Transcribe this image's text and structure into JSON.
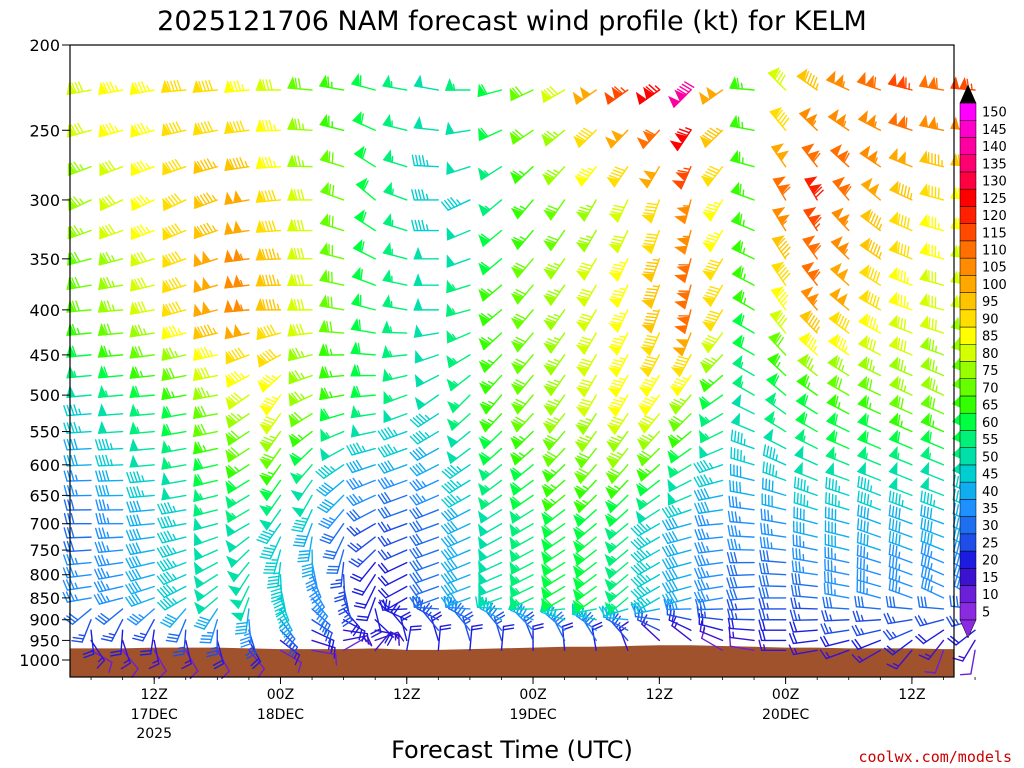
{
  "chart_data": {
    "type": "wind_barb_profile",
    "title": "2025121706 NAM forecast wind profile (kt) for KELM",
    "xlabel": "Forecast Time (UTC)",
    "units": "kt",
    "forecast_hours": [
      0,
      3,
      6,
      9,
      12,
      15,
      18,
      21,
      24,
      27,
      30,
      33,
      36,
      39,
      42,
      45,
      48,
      51,
      54,
      57,
      60,
      63,
      66,
      69,
      72,
      75,
      78,
      81,
      84
    ],
    "x_range_hours": [
      -2,
      82
    ],
    "levels": [
      975,
      950,
      925,
      900,
      875,
      850,
      825,
      800,
      775,
      750,
      725,
      700,
      675,
      650,
      625,
      600,
      575,
      550,
      525,
      500,
      475,
      450,
      425,
      400,
      375,
      350,
      325,
      300,
      275,
      250,
      225
    ],
    "y_range_hpa": [
      1040,
      200
    ],
    "y_ticks": [
      "200",
      "250",
      "300",
      "350",
      "400",
      "450",
      "500",
      "550",
      "600",
      "650",
      "700",
      "750",
      "800",
      "850",
      "900",
      "950",
      "1000"
    ],
    "y_tick_values": [
      200,
      250,
      300,
      350,
      400,
      450,
      500,
      550,
      600,
      650,
      700,
      750,
      800,
      850,
      900,
      950,
      1000
    ],
    "x_ticks": [
      {
        "hour": 6,
        "label": "12Z",
        "date": "17DEC",
        "year": "2025"
      },
      {
        "hour": 18,
        "label": "00Z",
        "date": "18DEC",
        "year": ""
      },
      {
        "hour": 30,
        "label": "12Z",
        "date": "",
        "year": ""
      },
      {
        "hour": 42,
        "label": "00Z",
        "date": "19DEC",
        "year": ""
      },
      {
        "hour": 54,
        "label": "12Z",
        "date": "",
        "year": ""
      },
      {
        "hour": 66,
        "label": "00Z",
        "date": "20DEC",
        "year": ""
      },
      {
        "hour": 78,
        "label": "12Z",
        "date": "",
        "year": ""
      }
    ],
    "terrain_pressure_hpa": [
      970,
      970,
      968,
      968,
      968,
      970,
      972,
      972,
      972,
      970,
      974,
      974,
      972,
      970,
      968,
      966,
      966,
      964,
      962,
      962,
      964,
      966,
      968,
      968,
      970,
      970,
      970,
      972,
      972
    ],
    "terrain_color": "#a0522d",
    "speed_anchors": [
      {
        "level": 975,
        "speeds": [
          8,
          8,
          8,
          10,
          12,
          12,
          10,
          8,
          10,
          15,
          18,
          20,
          20,
          20,
          20,
          20,
          20,
          15,
          10,
          8,
          10,
          12,
          15,
          15,
          15,
          15,
          15,
          12,
          12
        ]
      },
      {
        "level": 850,
        "speeds": [
          35,
          35,
          40,
          45,
          50,
          50,
          45,
          35,
          25,
          20,
          20,
          30,
          40,
          50,
          55,
          60,
          60,
          55,
          45,
          40,
          35,
          30,
          30,
          30,
          35,
          35,
          35,
          35,
          35
        ]
      },
      {
        "level": 700,
        "speeds": [
          30,
          35,
          40,
          45,
          50,
          50,
          45,
          40,
          30,
          25,
          25,
          30,
          40,
          50,
          55,
          60,
          60,
          55,
          45,
          40,
          35,
          35,
          35,
          40,
          40,
          40,
          40,
          40,
          40
        ]
      },
      {
        "level": 500,
        "speeds": [
          50,
          55,
          60,
          65,
          75,
          80,
          85,
          75,
          65,
          60,
          55,
          50,
          55,
          65,
          70,
          75,
          80,
          85,
          85,
          75,
          60,
          55,
          60,
          65,
          70,
          70,
          75,
          75,
          70
        ]
      },
      {
        "level": 400,
        "speeds": [
          70,
          75,
          80,
          90,
          100,
          105,
          95,
          80,
          70,
          60,
          55,
          50,
          55,
          65,
          70,
          75,
          80,
          85,
          95,
          110,
          90,
          65,
          85,
          105,
          100,
          90,
          85,
          80,
          80
        ]
      },
      {
        "level": 300,
        "speeds": [
          75,
          80,
          85,
          90,
          95,
          100,
          90,
          80,
          70,
          60,
          55,
          45,
          45,
          55,
          65,
          70,
          75,
          80,
          90,
          105,
          85,
          65,
          110,
          120,
          110,
          100,
          95,
          90,
          85
        ]
      },
      {
        "level": 225,
        "speeds": [
          80,
          85,
          85,
          90,
          90,
          85,
          80,
          70,
          65,
          60,
          55,
          50,
          55,
          60,
          70,
          80,
          100,
          115,
          125,
          140,
          100,
          65,
          80,
          95,
          105,
          110,
          115,
          110,
          115
        ]
      }
    ],
    "direction_anchors": [
      {
        "level": 975,
        "dirs": [
          120,
          140,
          150,
          150,
          150,
          140,
          120,
          100,
          60,
          40,
          10,
          5,
          5,
          5,
          0,
          355,
          350,
          340,
          330,
          320,
          300,
          280,
          270,
          260,
          250,
          240,
          220,
          200,
          190
        ]
      },
      {
        "level": 850,
        "dirs": [
          260,
          255,
          250,
          240,
          230,
          200,
          160,
          140,
          160,
          200,
          240,
          250,
          250,
          250,
          245,
          240,
          235,
          230,
          240,
          255,
          260,
          265,
          270,
          275,
          280,
          285,
          290,
          295,
          300
        ]
      },
      {
        "level": 700,
        "dirs": [
          270,
          270,
          265,
          260,
          255,
          240,
          215,
          200,
          215,
          240,
          250,
          250,
          245,
          240,
          240,
          235,
          230,
          230,
          240,
          255,
          265,
          275,
          280,
          285,
          285,
          290,
          290,
          290,
          295
        ]
      },
      {
        "level": 500,
        "dirs": [
          265,
          265,
          265,
          260,
          260,
          235,
          215,
          245,
          260,
          265,
          250,
          235,
          225,
          220,
          220,
          215,
          210,
          210,
          215,
          220,
          235,
          300,
          310,
          305,
          300,
          295,
          295,
          295,
          295
        ]
      },
      {
        "level": 400,
        "dirs": [
          265,
          265,
          260,
          255,
          255,
          265,
          270,
          270,
          280,
          285,
          280,
          270,
          255,
          230,
          220,
          215,
          210,
          205,
          200,
          195,
          210,
          300,
          325,
          320,
          310,
          300,
          290,
          285,
          280
        ]
      },
      {
        "level": 300,
        "dirs": [
          245,
          245,
          245,
          245,
          250,
          260,
          265,
          270,
          290,
          310,
          290,
          270,
          245,
          230,
          220,
          215,
          210,
          205,
          200,
          195,
          210,
          290,
          330,
          330,
          320,
          310,
          295,
          285,
          275
        ]
      },
      {
        "level": 225,
        "dirs": [
          260,
          260,
          260,
          265,
          265,
          265,
          270,
          275,
          280,
          285,
          280,
          280,
          270,
          255,
          245,
          240,
          235,
          235,
          235,
          225,
          235,
          275,
          315,
          305,
          295,
          290,
          285,
          280,
          275
        ]
      }
    ],
    "colorbar": {
      "labels": [
        "5",
        "10",
        "15",
        "20",
        "25",
        "30",
        "35",
        "40",
        "45",
        "50",
        "55",
        "60",
        "65",
        "70",
        "75",
        "80",
        "85",
        "90",
        "95",
        "100",
        "105",
        "110",
        "115",
        "120",
        "125",
        "130",
        "135",
        "140",
        "145",
        "150"
      ],
      "values": [
        5,
        10,
        15,
        20,
        25,
        30,
        35,
        40,
        45,
        50,
        55,
        60,
        65,
        70,
        75,
        80,
        85,
        90,
        95,
        100,
        105,
        110,
        115,
        120,
        125,
        130,
        135,
        140,
        145,
        150
      ],
      "colors": [
        "#8a2be2",
        "#6a1fd8",
        "#3a12d0",
        "#1c1ce0",
        "#1e4de8",
        "#1e6ef0",
        "#1e90ff",
        "#10aef0",
        "#00ced1",
        "#00e0a8",
        "#00f07a",
        "#00ff40",
        "#33ff00",
        "#66ff00",
        "#99ff00",
        "#d4ff00",
        "#ffff00",
        "#ffdd00",
        "#ffc400",
        "#ffa800",
        "#ff8c00",
        "#ff7000",
        "#ff4a00",
        "#ff2000",
        "#ff0000",
        "#ff0040",
        "#ff0070",
        "#ff00a0",
        "#ff00cc",
        "#ff00ff"
      ],
      "min_arrow_color": "#8a2be2",
      "max_arrow_color": "#000000"
    },
    "credit": "coolwx.com/models"
  }
}
